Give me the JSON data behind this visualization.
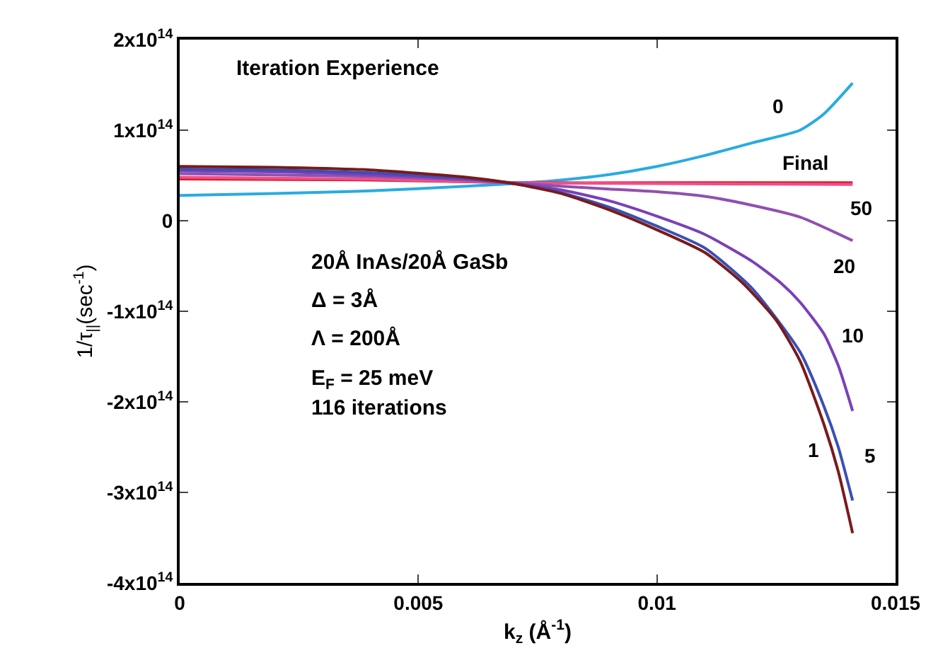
{
  "chart_data": {
    "type": "line",
    "title": "Iteration Experience",
    "xlabel": "k$_{z}$ (Å$^{-1}$)",
    "ylabel": "1/τ$_{||}$(sec$^{-1}$)",
    "xlim": [
      0,
      0.015
    ],
    "xticks": [
      0,
      0.005,
      0.01,
      0.015
    ],
    "ylim": [
      -400000000000000.0,
      200000000000000.0
    ],
    "yticks": [
      {
        "value": -400000000000000.0,
        "label": "-4x10$^{14}$"
      },
      {
        "value": -300000000000000.0,
        "label": "-3x10$^{14}$"
      },
      {
        "value": -200000000000000.0,
        "label": "-2x10$^{14}$"
      },
      {
        "value": -100000000000000.0,
        "label": "-1x10$^{14}$"
      },
      0,
      {
        "value": 100000000000000.0,
        "label": "1x10$^{14}$"
      },
      {
        "value": 200000000000000.0,
        "label": "2x10$^{14}$"
      }
    ],
    "legend": false,
    "marker": "none",
    "line_style": "solid",
    "annotations": [
      "20Å InAs/20Å GaSb",
      "Δ = 3Å",
      "Λ = 200Å",
      "E$_{F}$ = 25 meV",
      "116 iterations"
    ],
    "series": [
      {
        "name": "0",
        "color": "#29abe2",
        "x": [
          0,
          0.002,
          0.004,
          0.006,
          0.007,
          0.008,
          0.009,
          0.01,
          0.011,
          0.012,
          0.013,
          0.0135,
          0.0141
        ],
        "values": [
          28000000000000.0,
          30000000000000.0,
          33000000000000.0,
          38000000000000.0,
          41000000000000.0,
          45000000000000.0,
          51000000000000.0,
          60000000000000.0,
          72000000000000.0,
          86000000000000.0,
          100000000000000.0,
          118000000000000.0,
          152000000000000.0
        ]
      },
      {
        "name": "Final",
        "color": "#e31b23",
        "x": [
          0,
          0.004,
          0.007,
          0.01,
          0.0141
        ],
        "values": [
          46000000000000.0,
          45000000000000.0,
          42000000000000.0,
          42000000000000.0,
          42000000000000.0
        ]
      },
      {
        "name": "50",
        "color": "#ee4f8c",
        "x": [
          0,
          0.004,
          0.007,
          0.01,
          0.0141
        ],
        "values": [
          48000000000000.0,
          46000000000000.0,
          42000000000000.0,
          41000000000000.0,
          40000000000000.0
        ]
      },
      {
        "name": "20",
        "color": "#9050b0",
        "x": [
          0,
          0.004,
          0.006,
          0.007,
          0.008,
          0.009,
          0.01,
          0.011,
          0.012,
          0.013,
          0.0141
        ],
        "values": [
          52000000000000.0,
          49000000000000.0,
          45000000000000.0,
          42000000000000.0,
          38000000000000.0,
          35000000000000.0,
          32000000000000.0,
          27000000000000.0,
          17000000000000.0,
          4000000000000.0,
          -22000000000000.0
        ]
      },
      {
        "name": "10",
        "color": "#7a40b8",
        "x": [
          0,
          0.002,
          0.004,
          0.006,
          0.007,
          0.008,
          0.009,
          0.01,
          0.011,
          0.012,
          0.0126,
          0.013,
          0.0135,
          0.0138,
          0.0141
        ],
        "values": [
          55000000000000.0,
          54000000000000.0,
          51000000000000.0,
          46000000000000.0,
          41000000000000.0,
          34000000000000.0,
          22000000000000.0,
          5000000000000.0,
          -15000000000000.0,
          -45000000000000.0,
          -69000000000000.0,
          -90000000000000.0,
          -125000000000000.0,
          -160000000000000.0,
          -210000000000000.0
        ]
      },
      {
        "name": "5",
        "color": "#3a4fb5",
        "x": [
          0,
          0.002,
          0.004,
          0.006,
          0.007,
          0.008,
          0.009,
          0.01,
          0.011,
          0.012,
          0.013,
          0.0135,
          0.0138,
          0.0141
        ],
        "values": [
          57000000000000.0,
          56000000000000.0,
          53000000000000.0,
          47000000000000.0,
          41000000000000.0,
          31000000000000.0,
          15000000000000.0,
          -6000000000000.0,
          -30000000000000.0,
          -75000000000000.0,
          -145000000000000.0,
          -205000000000000.0,
          -250000000000000.0,
          -309000000000000.0
        ]
      },
      {
        "name": "1",
        "color": "#7a1a1a",
        "x": [
          0,
          0.002,
          0.004,
          0.006,
          0.007,
          0.008,
          0.009,
          0.01,
          0.011,
          0.0118,
          0.0125,
          0.013,
          0.0135,
          0.0138,
          0.0141
        ],
        "values": [
          60000000000000.0,
          59000000000000.0,
          56000000000000.0,
          48000000000000.0,
          41000000000000.0,
          30000000000000.0,
          12000000000000.0,
          -10000000000000.0,
          -35000000000000.0,
          -69000000000000.0,
          -110000000000000.0,
          -155000000000000.0,
          -225000000000000.0,
          -277000000000000.0,
          -345000000000000.0
        ]
      }
    ]
  }
}
